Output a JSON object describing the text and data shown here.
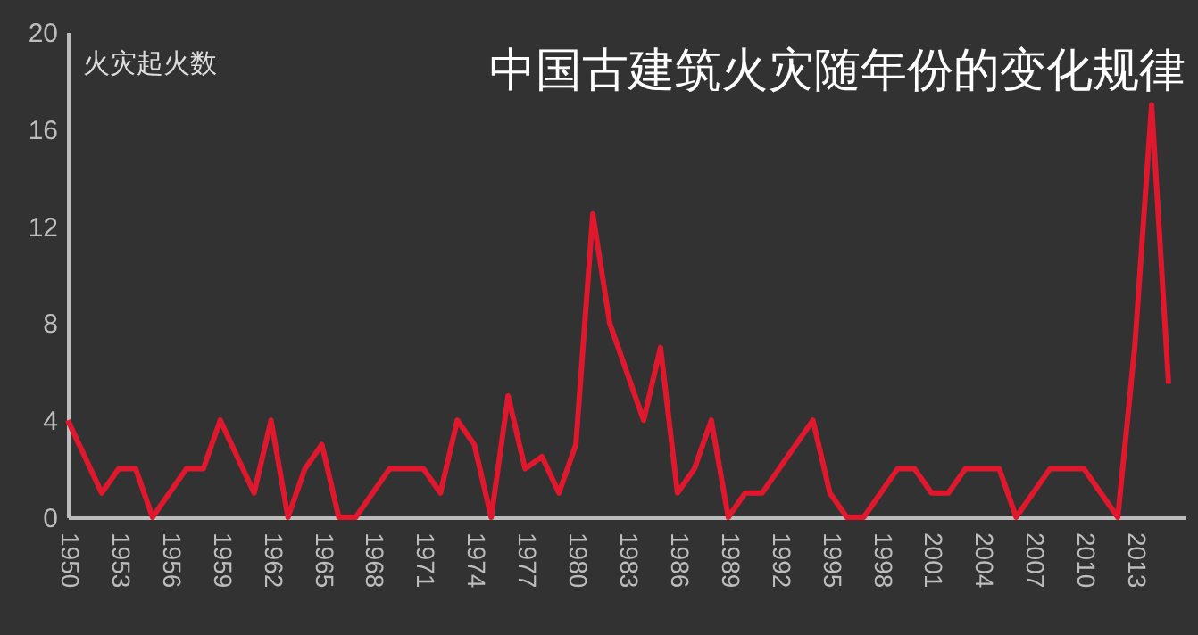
{
  "chart_data": {
    "type": "line",
    "title": "中国古建筑火灾随年份的变化规律",
    "ylabel": "火灾起火数",
    "x": [
      1950,
      1951,
      1952,
      1953,
      1954,
      1955,
      1956,
      1957,
      1958,
      1959,
      1960,
      1961,
      1962,
      1963,
      1964,
      1965,
      1966,
      1967,
      1968,
      1969,
      1970,
      1971,
      1972,
      1973,
      1974,
      1975,
      1976,
      1977,
      1978,
      1979,
      1980,
      1981,
      1982,
      1983,
      1984,
      1985,
      1986,
      1987,
      1988,
      1989,
      1990,
      1991,
      1992,
      1993,
      1994,
      1995,
      1996,
      1997,
      1998,
      1999,
      2000,
      2001,
      2002,
      2003,
      2004,
      2005,
      2006,
      2007,
      2008,
      2009,
      2010,
      2011,
      2012,
      2013,
      2014,
      2015
    ],
    "series": [
      {
        "color": "#e0182d",
        "values": [
          4,
          2.5,
          1,
          2,
          2,
          0,
          1,
          2,
          2,
          4,
          2.5,
          1,
          4,
          0,
          2,
          3,
          0,
          0,
          1,
          2,
          2,
          2,
          1,
          4,
          3,
          0,
          5,
          2,
          2.5,
          1,
          3,
          12.5,
          8,
          6,
          4,
          7,
          1,
          2,
          4,
          0,
          1,
          1,
          2,
          3,
          4,
          1,
          0,
          0,
          1,
          2,
          2,
          1,
          1,
          2,
          2,
          2,
          0,
          1,
          2,
          2,
          2,
          1,
          0,
          7,
          17,
          5.5
        ]
      }
    ],
    "xlim": [
      1950,
      2016
    ],
    "xticks": [
      1950,
      1953,
      1956,
      1959,
      1962,
      1965,
      1968,
      1971,
      1974,
      1977,
      1980,
      1983,
      1986,
      1989,
      1992,
      1995,
      1998,
      2001,
      2004,
      2007,
      2010,
      2013
    ],
    "ylim": [
      0,
      20
    ],
    "yticks": [
      0,
      4,
      8,
      12,
      16,
      20
    ],
    "grid": false,
    "marker": "none",
    "line_style": "solid"
  }
}
